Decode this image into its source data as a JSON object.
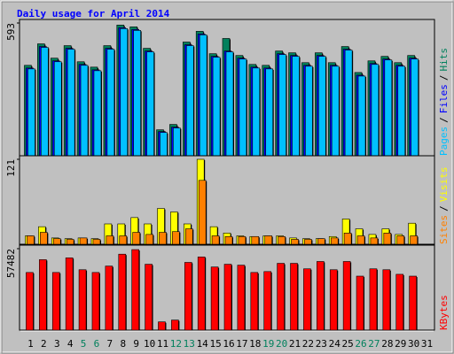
{
  "chart_data": [
    {
      "type": "bar",
      "title": "Daily usage for April 2014",
      "categories": [
        "1",
        "2",
        "3",
        "4",
        "5",
        "6",
        "7",
        "8",
        "9",
        "10",
        "11",
        "12",
        "13",
        "14",
        "15",
        "16",
        "17",
        "18",
        "19",
        "20",
        "21",
        "22",
        "23",
        "24",
        "25",
        "26",
        "27",
        "28",
        "29",
        "30",
        "31"
      ],
      "category_colors": [
        "#000000",
        "#000000",
        "#000000",
        "#000000",
        "#00805c",
        "#00805c",
        "#000000",
        "#000000",
        "#000000",
        "#000000",
        "#000000",
        "#00805c",
        "#00805c",
        "#000000",
        "#000000",
        "#000000",
        "#000000",
        "#000000",
        "#00805c",
        "#00805c",
        "#000000",
        "#000000",
        "#000000",
        "#000000",
        "#000000",
        "#00805c",
        "#00805c",
        "#000000",
        "#000000",
        "#000000",
        "#000000"
      ],
      "legend_separator": "/",
      "ylim": [
        0,
        593
      ],
      "yticks": [
        593
      ],
      "series": [
        {
          "name": "Pages",
          "color": "#00c0ff",
          "values": [
            388,
            484,
            420,
            476,
            404,
            380,
            476,
            568,
            560,
            464,
            104,
            124,
            492,
            540,
            440,
            464,
            432,
            392,
            388,
            452,
            444,
            400,
            444,
            400,
            472,
            356,
            408,
            428,
            400,
            432,
            null
          ]
        },
        {
          "name": "Files",
          "color": "#0000ff",
          "values": [
            392,
            488,
            424,
            480,
            408,
            384,
            480,
            572,
            564,
            468,
            108,
            128,
            496,
            544,
            444,
            468,
            436,
            396,
            392,
            456,
            448,
            404,
            448,
            404,
            476,
            360,
            412,
            432,
            404,
            436,
            null
          ]
        },
        {
          "name": "Hits",
          "color": "#00805c",
          "values": [
            404,
            500,
            436,
            492,
            420,
            396,
            492,
            584,
            576,
            480,
            116,
            140,
            508,
            556,
            456,
            524,
            448,
            408,
            404,
            468,
            460,
            416,
            460,
            416,
            488,
            372,
            424,
            444,
            416,
            448,
            null
          ]
        }
      ]
    },
    {
      "type": "bar",
      "legend_separator": "/",
      "ylim": [
        0,
        121
      ],
      "yticks": [
        121
      ],
      "series": [
        {
          "name": "Sites",
          "color": "#ff8000",
          "values": [
            12,
            17,
            8,
            7,
            9,
            7,
            12,
            12,
            17,
            14,
            17,
            18,
            22,
            91,
            12,
            11,
            11,
            11,
            12,
            11,
            7,
            7,
            8,
            9,
            16,
            12,
            9,
            16,
            12,
            12,
            null
          ]
        },
        {
          "name": "Visits",
          "color": "#ffff00",
          "values": [
            12,
            25,
            9,
            8,
            9,
            8,
            29,
            29,
            38,
            29,
            51,
            46,
            29,
            121,
            25,
            16,
            12,
            11,
            12,
            12,
            9,
            8,
            8,
            11,
            36,
            22,
            14,
            22,
            14,
            30,
            null
          ]
        }
      ]
    },
    {
      "type": "bar",
      "ylim": [
        0,
        57482
      ],
      "yticks": [
        57482
      ],
      "series": [
        {
          "name": "KBytes",
          "color": "#ff0000",
          "values": [
            40690,
            49730,
            40690,
            51024,
            42630,
            40690,
            45210,
            53610,
            56835,
            46500,
            5813,
            7105,
            47795,
            51670,
            44565,
            46500,
            45860,
            40690,
            41335,
            47150,
            47150,
            43275,
            48440,
            42630,
            48440,
            38105,
            43275,
            42630,
            39400,
            38105,
            null
          ]
        }
      ]
    }
  ]
}
